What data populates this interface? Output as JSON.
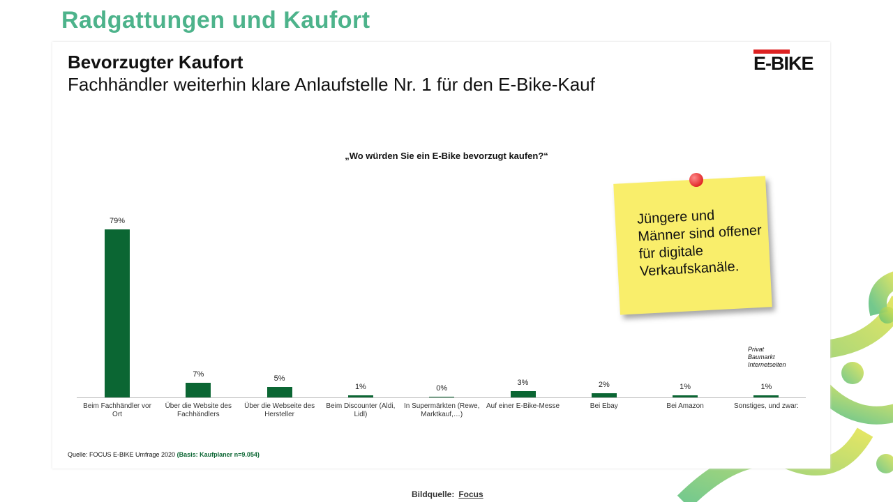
{
  "page_title": "Radgattungen und Kaufort",
  "chart_data": {
    "type": "bar",
    "title": "Bevorzugter Kaufort",
    "subtitle": "Fachhändler weiterhin klare Anlaufstelle Nr. 1 für den E-Bike-Kauf",
    "question": "„Wo würden Sie ein E-Bike bevorzugt kaufen?“",
    "logo": "E-BIKE",
    "categories": [
      "Beim Fachhändler vor Ort",
      "Über die Website des Fachhändlers",
      "Über die Webseite des Hersteller",
      "Beim Discounter (Aldi, Lidl)",
      "In Supermärkten (Rewe, Marktkauf,…)",
      "Auf einer E-Bike-Messe",
      "Bei Ebay",
      "Bei Amazon",
      "Sonstiges, und zwar:"
    ],
    "values": [
      79,
      7,
      5,
      1,
      0,
      3,
      2,
      1,
      1
    ],
    "value_labels": [
      "79%",
      "7%",
      "5%",
      "1%",
      "0%",
      "3%",
      "2%",
      "1%",
      "1%"
    ],
    "color": "#0b6633",
    "side_note": [
      "Privat",
      "Baumarkt",
      "Internetseiten"
    ],
    "note": "Jüngere und Männer sind offener für digitale Verkaufskanäle.",
    "source": "Quelle: FOCUS E-BIKE Umfrage 2020",
    "source_basis": "(Basis: Kaufplaner n=9.054)"
  },
  "footer": {
    "label": "Bildquelle:",
    "link": "Focus"
  }
}
